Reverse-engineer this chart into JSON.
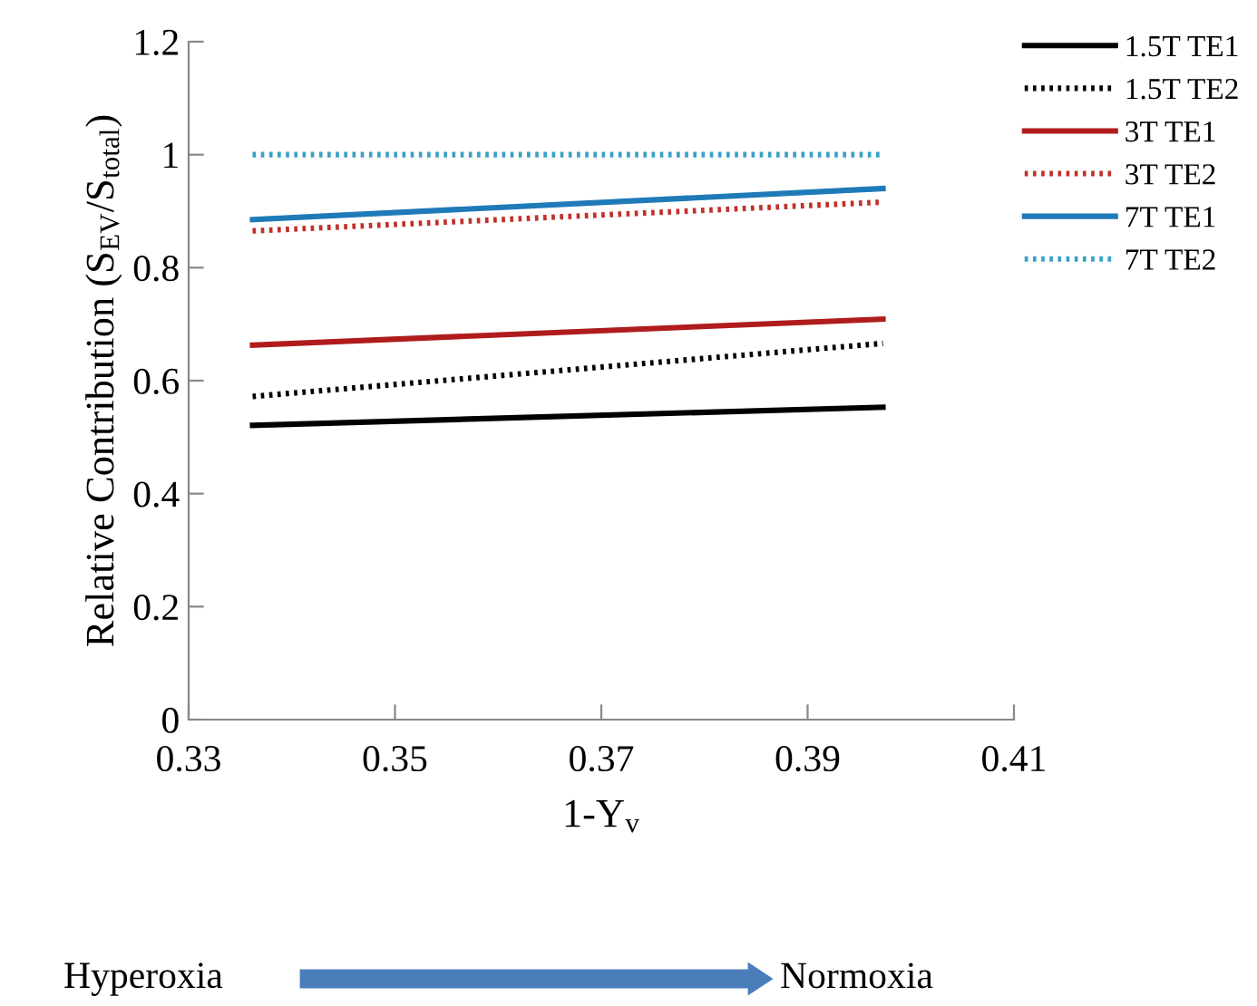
{
  "chart_data": {
    "type": "line",
    "xlabel": "1-Y$_{v}$",
    "ylabel": "Relative Contribution (S$_{EV}$/S$_{total}$)",
    "x": [
      0.3362,
      0.3973
    ],
    "series": [
      {
        "name": "1.5T TE1",
        "color": "#000000",
        "line_style": "solid",
        "values": [
          0.521,
          0.553
        ]
      },
      {
        "name": "1.5T TE2",
        "color": "#000000",
        "line_style": "dotted",
        "values": [
          0.572,
          0.666
        ]
      },
      {
        "name": "3T TE1",
        "color": "#b01c1c",
        "line_style": "solid",
        "values": [
          0.663,
          0.709
        ]
      },
      {
        "name": "3T TE2",
        "color": "#c0302a",
        "line_style": "dotted",
        "values": [
          0.865,
          0.916
        ]
      },
      {
        "name": "7T TE1",
        "color": "#1f7ab8",
        "line_style": "solid",
        "values": [
          0.885,
          0.94
        ]
      },
      {
        "name": "7T TE2",
        "color": "#3aa0c8",
        "line_style": "dotted",
        "values": [
          1.0,
          1.0
        ]
      }
    ],
    "xlim": [
      0.33,
      0.41
    ],
    "xticks": [
      0.33,
      0.35,
      0.37,
      0.39,
      0.41
    ],
    "ylim": [
      0,
      1.2
    ],
    "yticks": [
      0,
      0.2,
      0.4,
      0.6,
      0.8,
      1,
      1.2
    ],
    "grid": false,
    "legend": "top right",
    "marker": "none",
    "annotations": [
      "Hyperoxia",
      "Normoxia"
    ]
  }
}
